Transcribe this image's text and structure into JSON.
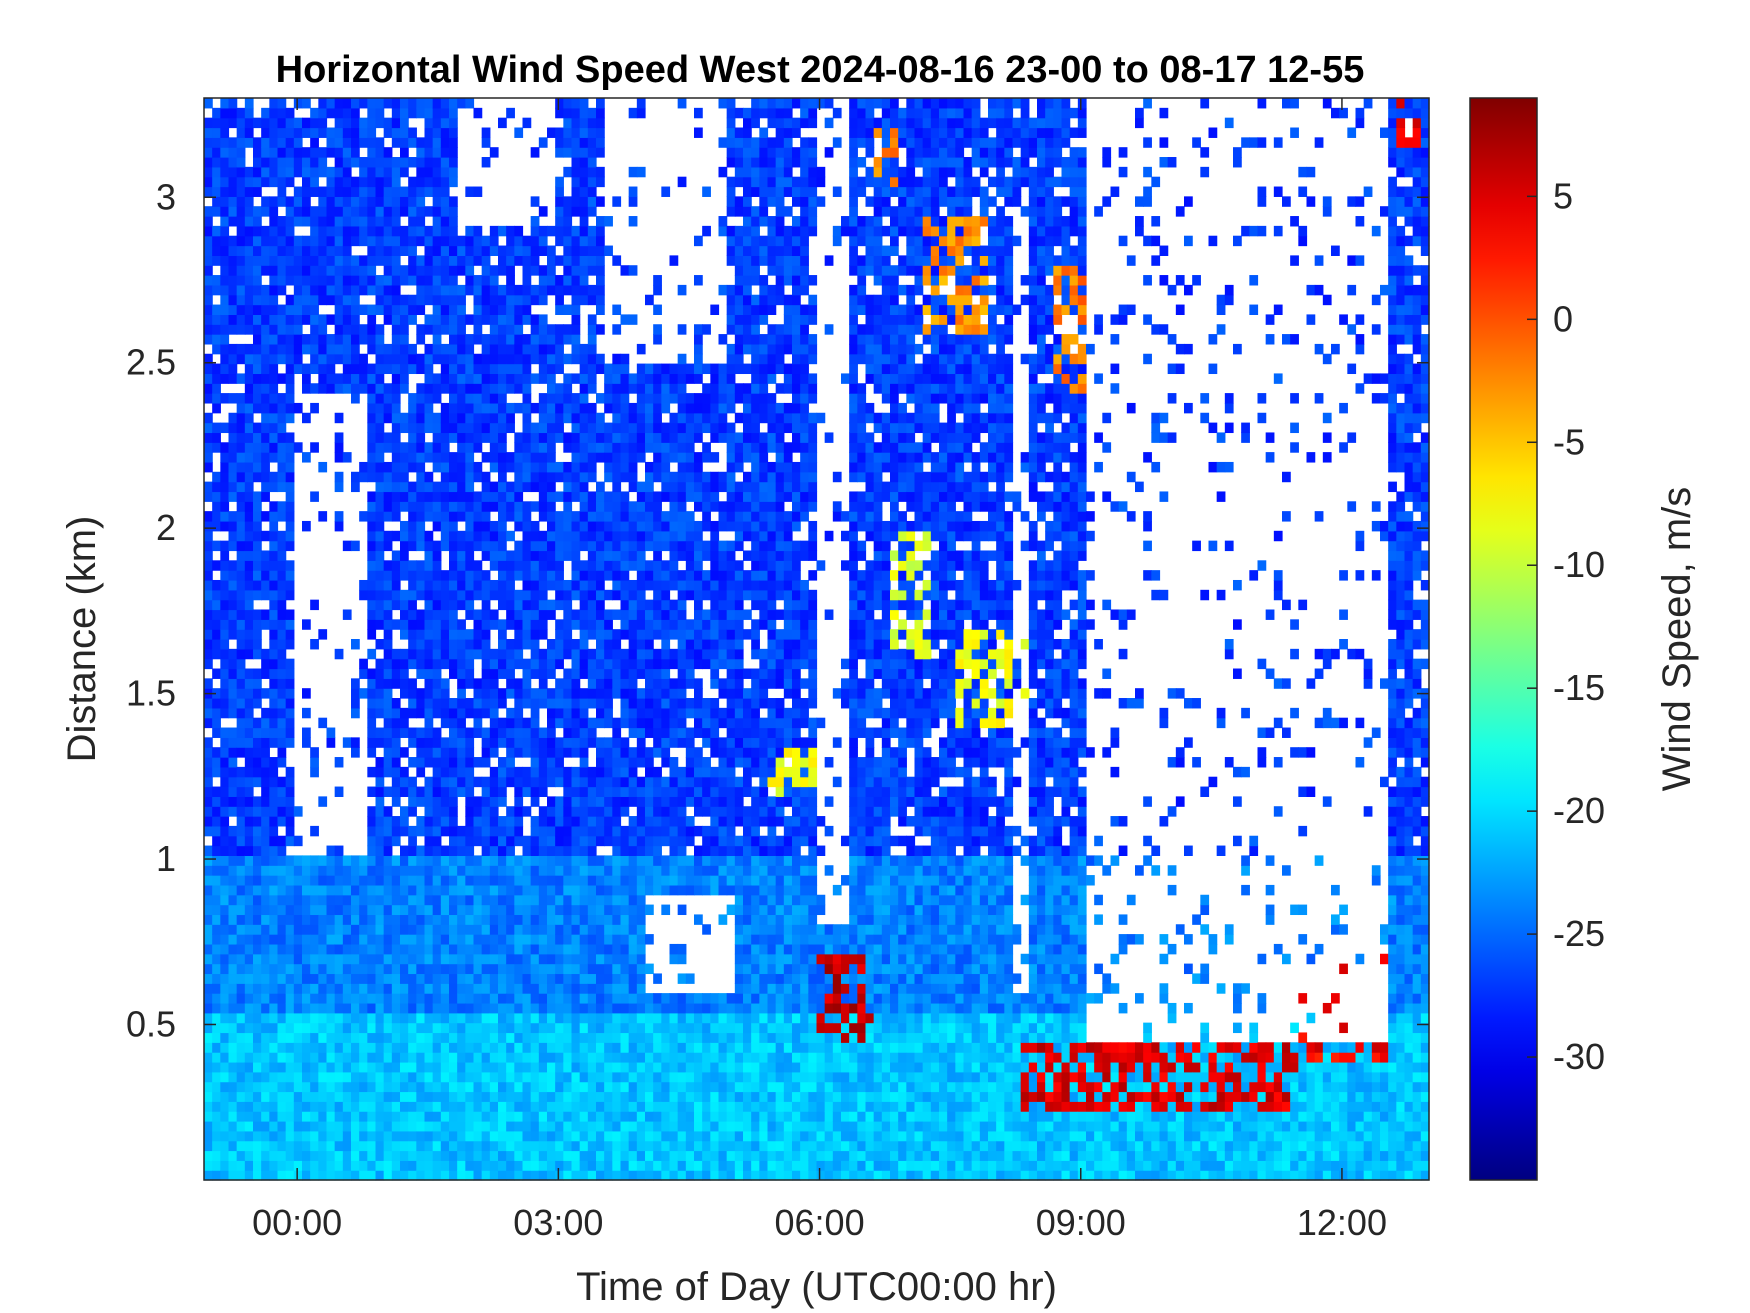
{
  "chart_data": {
    "type": "heatmap",
    "title": "Horizontal Wind Speed West 2024-08-16 23-00 to 08-17 12-55",
    "xlabel": "Time of Day (UTC00:00 hr)",
    "ylabel": "Distance (km)",
    "x_unit": "hours after 2024-08-17 00:00 UTC",
    "xlim": [
      -1.07,
      13.0
    ],
    "ylim": [
      0.03,
      3.3
    ],
    "x_ticks": [
      {
        "value": 0,
        "label": "00:00"
      },
      {
        "value": 3,
        "label": "03:00"
      },
      {
        "value": 6,
        "label": "06:00"
      },
      {
        "value": 9,
        "label": "09:00"
      },
      {
        "value": 12,
        "label": "12:00"
      }
    ],
    "y_ticks": [
      {
        "value": 0.5,
        "label": "0.5"
      },
      {
        "value": 1,
        "label": "1"
      },
      {
        "value": 1.5,
        "label": "1.5"
      },
      {
        "value": 2,
        "label": "2"
      },
      {
        "value": 2.5,
        "label": "2.5"
      },
      {
        "value": 3,
        "label": "3"
      }
    ],
    "colorbar": {
      "label": "Wind Speed, m/s",
      "colormap": "jet",
      "clim": [
        -35,
        9
      ],
      "ticks": [
        {
          "value": 5,
          "label": "5"
        },
        {
          "value": 0,
          "label": "0"
        },
        {
          "value": -5,
          "label": "-5"
        },
        {
          "value": -10,
          "label": "-10"
        },
        {
          "value": -15,
          "label": "-15"
        },
        {
          "value": -20,
          "label": "-20"
        },
        {
          "value": -25,
          "label": "-25"
        },
        {
          "value": -30,
          "label": "-30"
        }
      ]
    },
    "speed_bands": [
      {
        "distance_km": [
          0.03,
          0.55
        ],
        "speed_ms": -21,
        "note": "near-surface layer"
      },
      {
        "distance_km": [
          0.55,
          1.0
        ],
        "speed_ms": -24
      },
      {
        "distance_km": [
          1.0,
          3.3
        ],
        "speed_ms": -27
      }
    ],
    "high_speed_patches": [
      {
        "time_h": [
          5.95,
          6.6
        ],
        "distance_km": [
          0.45,
          0.7
        ],
        "speed_ms": 6
      },
      {
        "time_h": [
          8.3,
          11.5
        ],
        "distance_km": [
          0.25,
          0.45
        ],
        "speed_ms": 5
      },
      {
        "time_h": [
          11.5,
          12.5
        ],
        "distance_km": [
          0.4,
          0.75
        ],
        "speed_ms": 4
      },
      {
        "time_h": [
          12.6,
          12.9
        ],
        "distance_km": [
          3.15,
          3.3
        ],
        "speed_ms": 5
      },
      {
        "time_h": [
          7.2,
          7.9
        ],
        "distance_km": [
          2.6,
          2.95
        ],
        "speed_ms": -3
      },
      {
        "time_h": [
          8.7,
          9.1
        ],
        "distance_km": [
          2.4,
          2.8
        ],
        "speed_ms": -2
      },
      {
        "time_h": [
          6.6,
          6.9
        ],
        "distance_km": [
          3.0,
          3.2
        ],
        "speed_ms": -2
      }
    ],
    "moderate_patches": [
      {
        "time_h": [
          6.8,
          7.3
        ],
        "distance_km": [
          1.6,
          2.0
        ],
        "speed_ms": -9
      },
      {
        "time_h": [
          7.6,
          8.4
        ],
        "distance_km": [
          1.4,
          1.7
        ],
        "speed_ms": -8
      },
      {
        "time_h": [
          5.4,
          6.0
        ],
        "distance_km": [
          1.2,
          1.35
        ],
        "speed_ms": -8
      }
    ],
    "data_gaps": [
      {
        "time_h": [
          0.0,
          0.8
        ],
        "distance_km": [
          1.0,
          2.4
        ]
      },
      {
        "time_h": [
          3.5,
          4.9
        ],
        "distance_km": [
          2.5,
          3.3
        ]
      },
      {
        "time_h": [
          4.0,
          5.0
        ],
        "distance_km": [
          0.6,
          0.9
        ]
      },
      {
        "time_h": [
          5.95,
          6.3
        ],
        "distance_km": [
          0.8,
          3.3
        ]
      },
      {
        "time_h": [
          9.1,
          12.5
        ],
        "distance_km": [
          0.45,
          3.3
        ]
      },
      {
        "time_h": [
          8.2,
          8.4
        ],
        "distance_km": [
          0.6,
          3.0
        ]
      },
      {
        "time_h": [
          1.8,
          3.0
        ],
        "distance_km": [
          2.9,
          3.3
        ]
      }
    ]
  }
}
